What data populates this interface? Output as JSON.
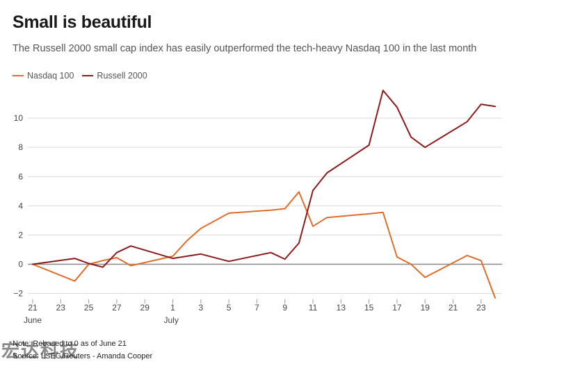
{
  "header": {
    "title": "Small is beautiful",
    "subtitle": "The Russell 2000 small cap index has easily outperformed the tech-heavy Nasdaq 100 in the last month"
  },
  "footer": {
    "note": "Note: Rebased to 0 as of June 21",
    "source": "Source: LSEG/Reuters - Amanda Cooper",
    "watermark": "宏达科技"
  },
  "chart_data": {
    "type": "line",
    "title": "Small is beautiful",
    "subtitle": "The Russell 2000 small cap index has easily outperformed the tech-heavy Nasdaq 100 in the last month",
    "xlabel": "",
    "ylabel": "",
    "ylim": [
      -2.4,
      12
    ],
    "yticks": [
      -2,
      0,
      2,
      4,
      6,
      8,
      10
    ],
    "ytick_labels": [
      "−2",
      "0",
      "2",
      "4",
      "6",
      "8",
      "10"
    ],
    "xlim": [
      "2024-06-21",
      "2024-07-24"
    ],
    "xtick_labels": [
      "21",
      "23",
      "25",
      "27",
      "29",
      "1",
      "3",
      "5",
      "7",
      "9",
      "11",
      "13",
      "15",
      "17",
      "19",
      "21",
      "23"
    ],
    "xtick_dates": [
      "2024-06-21",
      "2024-06-23",
      "2024-06-25",
      "2024-06-27",
      "2024-06-29",
      "2024-07-01",
      "2024-07-03",
      "2024-07-05",
      "2024-07-07",
      "2024-07-09",
      "2024-07-11",
      "2024-07-13",
      "2024-07-15",
      "2024-07-17",
      "2024-07-19",
      "2024-07-21",
      "2024-07-23"
    ],
    "month_labels": [
      {
        "label": "June",
        "date": "2024-06-21"
      },
      {
        "label": "July",
        "date": "2024-07-01"
      }
    ],
    "legend_position": "top-left",
    "grid": true,
    "zero_line": true,
    "series": [
      {
        "name": "Nasdaq 100",
        "color": "#e06c2a",
        "x": [
          "2024-06-21",
          "2024-06-24",
          "2024-06-25",
          "2024-06-26",
          "2024-06-27",
          "2024-06-28",
          "2024-07-01",
          "2024-07-02",
          "2024-07-03",
          "2024-07-05",
          "2024-07-08",
          "2024-07-09",
          "2024-07-10",
          "2024-07-11",
          "2024-07-12",
          "2024-07-15",
          "2024-07-16",
          "2024-07-17",
          "2024-07-18",
          "2024-07-19",
          "2024-07-22",
          "2024-07-23",
          "2024-07-24"
        ],
        "values": [
          0,
          -1.15,
          0,
          0.25,
          0.45,
          -0.1,
          0.55,
          1.6,
          2.45,
          3.5,
          3.7,
          3.8,
          4.95,
          2.6,
          3.2,
          3.45,
          3.55,
          0.5,
          0.0,
          -0.9,
          0.6,
          0.25,
          -2.3
        ]
      },
      {
        "name": "Russell 2000",
        "color": "#8b1a1a",
        "x": [
          "2024-06-21",
          "2024-06-24",
          "2024-06-25",
          "2024-06-26",
          "2024-06-27",
          "2024-06-28",
          "2024-07-01",
          "2024-07-02",
          "2024-07-03",
          "2024-07-05",
          "2024-07-08",
          "2024-07-09",
          "2024-07-10",
          "2024-07-11",
          "2024-07-12",
          "2024-07-15",
          "2024-07-16",
          "2024-07-17",
          "2024-07-18",
          "2024-07-19",
          "2024-07-22",
          "2024-07-23",
          "2024-07-24"
        ],
        "values": [
          0,
          0.4,
          0.05,
          -0.2,
          0.8,
          1.25,
          0.4,
          0.55,
          0.7,
          0.2,
          0.8,
          0.35,
          1.45,
          5.05,
          6.25,
          8.15,
          11.9,
          10.75,
          8.7,
          8.0,
          9.75,
          10.95,
          10.8
        ]
      }
    ]
  }
}
